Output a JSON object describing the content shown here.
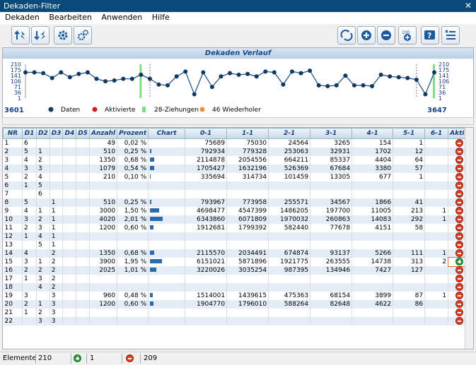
{
  "window": {
    "title": "Dekaden-Filter"
  },
  "menu": [
    "Dekaden",
    "Bearbeiten",
    "Anwenden",
    "Hilfe"
  ],
  "toolbar": {
    "left": [
      "sort-up-icon",
      "sort-down-icon",
      "gear-icon",
      "gears-icon"
    ],
    "right": [
      "recycle-icon",
      "plus-icon",
      "minus-icon",
      "counter-icon",
      "help-icon",
      "filter-list-icon"
    ]
  },
  "chart": {
    "title": "Dekaden Verlauf",
    "y_ticks": [
      "210",
      "175",
      "141",
      "106",
      "71",
      "36",
      "1"
    ],
    "x_start": "3601",
    "x_end": "3647",
    "legend": [
      "Daten",
      "Aktivierte",
      "28-Ziehungen",
      "46 Wiederholer"
    ],
    "colors": {
      "line": "#1a4a8a",
      "point": "#0d3a63",
      "active": "#d02020",
      "z28": "#80e080",
      "w46": "#f09030"
    }
  },
  "chart_data": {
    "type": "line",
    "x": [
      3601,
      3602,
      3603,
      3604,
      3605,
      3606,
      3607,
      3608,
      3609,
      3610,
      3611,
      3612,
      3613,
      3614,
      3615,
      3616,
      3617,
      3618,
      3619,
      3620,
      3621,
      3622,
      3623,
      3624,
      3625,
      3626,
      3627,
      3628,
      3629,
      3630,
      3631,
      3632,
      3633,
      3634,
      3635,
      3636,
      3637,
      3638,
      3639,
      3640,
      3641,
      3642,
      3643,
      3644,
      3645,
      3646,
      3647
    ],
    "y": [
      160,
      160,
      155,
      125,
      160,
      130,
      150,
      160,
      120,
      105,
      110,
      120,
      120,
      145,
      120,
      85,
      80,
      135,
      165,
      25,
      160,
      70,
      135,
      155,
      145,
      150,
      135,
      165,
      160,
      85,
      165,
      155,
      170,
      80,
      75,
      80,
      140,
      80,
      80,
      75,
      145,
      135,
      130,
      125,
      115,
      25,
      160
    ],
    "ylim": [
      1,
      210
    ]
  },
  "table": {
    "headers": [
      "NR",
      "D1",
      "D2",
      "D3",
      "D4",
      "D5",
      "Anzahl",
      "Prozent",
      "Chart",
      "0-1",
      "1-1",
      "2-1",
      "3-1",
      "4-1",
      "5-1",
      "6-1",
      "Aktiv"
    ],
    "rows": [
      [
        "1",
        "6",
        "",
        "",
        "",
        "",
        "49",
        "0,02 %",
        "0",
        "75689",
        "75030",
        "24564",
        "3265",
        "154",
        "1",
        "",
        "off"
      ],
      [
        "2",
        "5",
        "1",
        "",
        "",
        "",
        "510",
        "0,25 %",
        "2",
        "792934",
        "779328",
        "253063",
        "32931",
        "1702",
        "12",
        "",
        "off"
      ],
      [
        "3",
        "4",
        "2",
        "",
        "",
        "",
        "1350",
        "0,68 %",
        "6",
        "2114878",
        "2054556",
        "664211",
        "85337",
        "4404",
        "64",
        "",
        "off"
      ],
      [
        "4",
        "3",
        "3",
        "",
        "",
        "",
        "1079",
        "0,54 %",
        "6",
        "1705427",
        "1632196",
        "526369",
        "67684",
        "3380",
        "57",
        "",
        "off"
      ],
      [
        "5",
        "2",
        "4",
        "",
        "",
        "",
        "210",
        "0,10 %",
        "1",
        "335694",
        "314734",
        "101459",
        "13305",
        "677",
        "1",
        "",
        "off"
      ],
      [
        "6",
        "1",
        "5",
        "",
        "",
        "",
        "",
        "",
        "0",
        "",
        "",
        "",
        "",
        "",
        "",
        "",
        "off"
      ],
      [
        "7",
        "",
        "6",
        "",
        "",
        "",
        "",
        "",
        "0",
        "",
        "",
        "",
        "",
        "",
        "",
        "",
        "off"
      ],
      [
        "8",
        "5",
        "",
        "1",
        "",
        "",
        "510",
        "0,25 %",
        "2",
        "793967",
        "773958",
        "255571",
        "34567",
        "1866",
        "41",
        "",
        "off"
      ],
      [
        "9",
        "4",
        "1",
        "1",
        "",
        "",
        "3000",
        "1,50 %",
        "13",
        "4698477",
        "4547399",
        "1486205",
        "197700",
        "11005",
        "213",
        "1",
        "off"
      ],
      [
        "10",
        "3",
        "2",
        "1",
        "",
        "",
        "4020",
        "2,01 %",
        "18",
        "6343860",
        "6071809",
        "1970032",
        "260863",
        "14083",
        "292",
        "1",
        "off"
      ],
      [
        "11",
        "2",
        "3",
        "1",
        "",
        "",
        "1200",
        "0,60 %",
        "5",
        "1912681",
        "1799392",
        "582440",
        "77678",
        "4151",
        "58",
        "",
        "off"
      ],
      [
        "12",
        "1",
        "4",
        "1",
        "",
        "",
        "",
        "",
        "0",
        "",
        "",
        "",
        "",
        "",
        "",
        "",
        "off"
      ],
      [
        "13",
        "",
        "5",
        "1",
        "",
        "",
        "",
        "",
        "0",
        "",
        "",
        "",
        "",
        "",
        "",
        "",
        "off"
      ],
      [
        "14",
        "4",
        "",
        "2",
        "",
        "",
        "1350",
        "0,68 %",
        "6",
        "2115570",
        "2034491",
        "674874",
        "93137",
        "5266",
        "111",
        "1",
        "off"
      ],
      [
        "15",
        "3",
        "1",
        "2",
        "",
        "",
        "3900",
        "1,95 %",
        "17",
        "6151021",
        "5871896",
        "1921775",
        "263555",
        "14738",
        "313",
        "2",
        "on"
      ],
      [
        "16",
        "2",
        "2",
        "2",
        "",
        "",
        "2025",
        "1,01 %",
        "9",
        "3220026",
        "3035254",
        "987395",
        "134946",
        "7427",
        "127",
        "",
        "off"
      ],
      [
        "17",
        "1",
        "3",
        "2",
        "",
        "",
        "",
        "",
        "0",
        "",
        "",
        "",
        "",
        "",
        "",
        "",
        "off"
      ],
      [
        "18",
        "",
        "4",
        "2",
        "",
        "",
        "",
        "",
        "0",
        "",
        "",
        "",
        "",
        "",
        "",
        "",
        "off"
      ],
      [
        "19",
        "3",
        "",
        "3",
        "",
        "",
        "960",
        "0,48 %",
        "4",
        "1514001",
        "1439615",
        "475363",
        "68154",
        "3899",
        "87",
        "1",
        "off"
      ],
      [
        "20",
        "2",
        "1",
        "3",
        "",
        "",
        "1200",
        "0,60 %",
        "5",
        "1904770",
        "1796010",
        "588264",
        "82648",
        "4622",
        "86",
        "",
        "off"
      ],
      [
        "21",
        "1",
        "2",
        "3",
        "",
        "",
        "",
        "",
        "0",
        "",
        "",
        "",
        "",
        "",
        "",
        "",
        "off"
      ],
      [
        "22",
        "",
        "3",
        "3",
        "",
        "",
        "",
        "",
        "0",
        "",
        "",
        "",
        "",
        "",
        "",
        "",
        "off"
      ]
    ]
  },
  "status": {
    "label": "Elemente",
    "count": "210",
    "active": "1",
    "inactive": "209"
  }
}
